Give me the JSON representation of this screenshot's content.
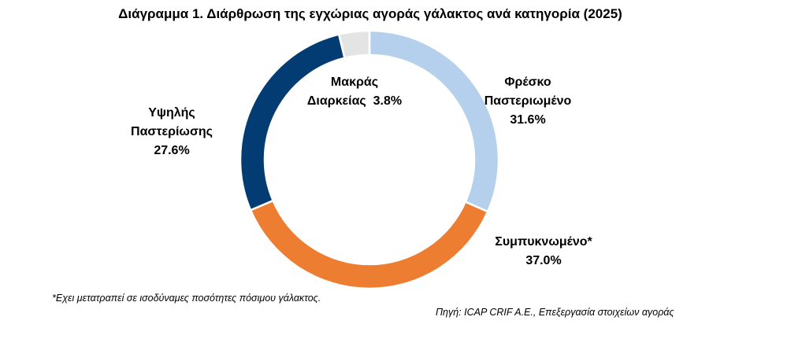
{
  "chart_data": {
    "type": "pie",
    "donut": true,
    "title": "Διάγραμμα 1. Διάρθρωση της εγχώριας αγοράς γάλακτος ανά κατηγορία (2025)",
    "slices": [
      {
        "label_lines": [
          "Φρέσκο",
          "Παστεριωμένο"
        ],
        "value": 31.6,
        "value_label": "31.6%",
        "color": "#b4d0ec"
      },
      {
        "label_lines": [
          "Συμπυκνωμένο*"
        ],
        "value": 37.0,
        "value_label": "37.0%",
        "color": "#ed7d31"
      },
      {
        "label_lines": [
          "Υψηλής",
          "Παστερίωσης"
        ],
        "value": 27.6,
        "value_label": "27.6%",
        "color": "#033c73"
      },
      {
        "label_lines": [
          "Μακράς",
          "Διαρκείας"
        ],
        "value": 3.8,
        "value_label": "3.8%",
        "color": "#e4e4e4"
      }
    ],
    "legend": "none"
  },
  "footnote": "*Εχει μετατραπεί σε ισοδύναμες ποσότητες πόσιμου γάλακτος.",
  "source": "Πηγή: ICAP CRIF A.E., Επεξεργασία στοιχείων αγοράς"
}
